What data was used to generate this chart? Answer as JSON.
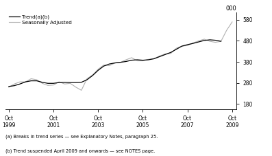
{
  "yticks": [
    180,
    280,
    380,
    480,
    580
  ],
  "ylim": [
    155,
    615
  ],
  "xlim_start": 1999.6,
  "xlim_end": 2009.95,
  "xtick_years": [
    1999,
    2001,
    2003,
    2005,
    2007,
    2009
  ],
  "footnote1": "(a) Breaks in trend series — see Explanatory Notes, paragraph 25.",
  "footnote2": "(b) Trend suspended April 2009 and onwards — see NOTES page.",
  "legend_trend": "Trend(a)(b)",
  "legend_sa": "Seasonally Adjusted",
  "trend_color": "#000000",
  "sa_color": "#b0b0b0",
  "background_color": "#ffffff",
  "unit_label": "000",
  "trend_x": [
    1999.75,
    2000.0,
    2000.25,
    2000.5,
    2000.75,
    2001.0,
    2001.25,
    2001.5,
    2001.75,
    2002.0,
    2002.25,
    2002.5,
    2002.75,
    2003.0,
    2003.25,
    2003.5,
    2003.75,
    2004.0,
    2004.25,
    2004.5,
    2004.75,
    2005.0,
    2005.25,
    2005.5,
    2005.75,
    2006.0,
    2006.25,
    2006.5,
    2006.75,
    2007.0,
    2007.25,
    2007.5,
    2007.75,
    2008.0,
    2008.25,
    2008.5,
    2008.75,
    2009.0,
    2009.25
  ],
  "trend_y": [
    263,
    267,
    275,
    285,
    290,
    290,
    283,
    278,
    278,
    282,
    283,
    282,
    282,
    283,
    295,
    315,
    340,
    360,
    370,
    375,
    378,
    382,
    388,
    390,
    388,
    390,
    395,
    405,
    415,
    425,
    440,
    455,
    462,
    468,
    475,
    482,
    485,
    483,
    478
  ],
  "sa_x": [
    1999.75,
    2000.0,
    2000.25,
    2000.5,
    2000.75,
    2001.0,
    2001.25,
    2001.5,
    2001.75,
    2002.0,
    2002.25,
    2002.5,
    2002.75,
    2003.0,
    2003.25,
    2003.5,
    2003.75,
    2004.0,
    2004.25,
    2004.5,
    2004.75,
    2005.0,
    2005.25,
    2005.5,
    2005.75,
    2006.0,
    2006.25,
    2006.5,
    2006.75,
    2007.0,
    2007.25,
    2007.5,
    2007.75,
    2008.0,
    2008.25,
    2008.5,
    2008.75,
    2009.0,
    2009.25,
    2009.5,
    2009.75
  ],
  "sa_y": [
    260,
    275,
    285,
    285,
    300,
    295,
    278,
    268,
    270,
    285,
    275,
    278,
    260,
    245,
    300,
    318,
    345,
    365,
    362,
    375,
    378,
    390,
    400,
    385,
    385,
    392,
    395,
    408,
    418,
    420,
    445,
    455,
    458,
    470,
    480,
    488,
    478,
    473,
    478,
    530,
    570
  ]
}
